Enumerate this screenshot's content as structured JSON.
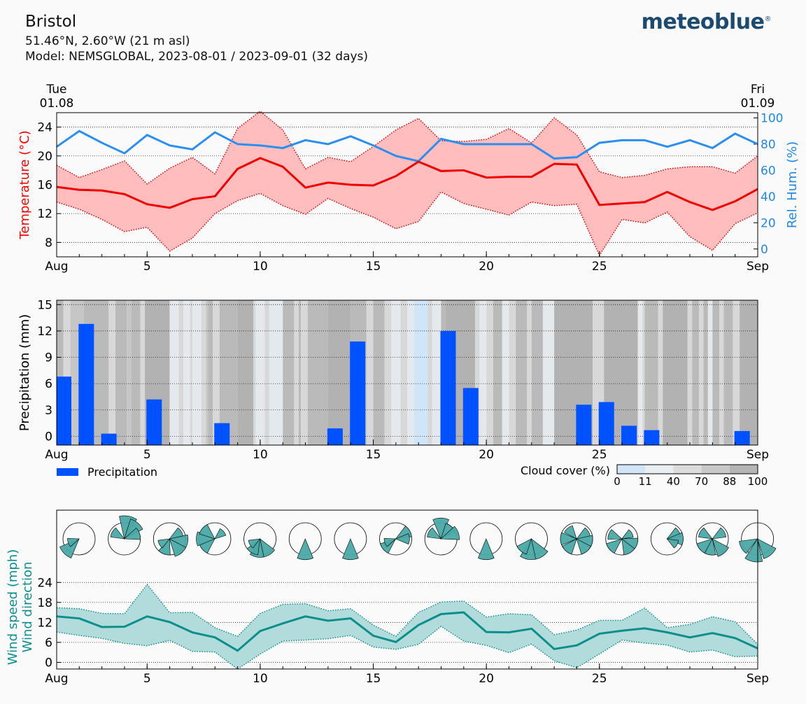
{
  "header": {
    "city": "Bristol",
    "coords": "51.46°N, 2.60°W (21 m asl)",
    "model": "Model: NEMSGLOBAL, 2023-08-01 / 2023-09-01 (32 days)",
    "logo": "meteoblue",
    "logo_mark": "®"
  },
  "dates": {
    "start_day": "Tue",
    "start_date": "01.08",
    "end_day": "Fri",
    "end_date": "01.09"
  },
  "xaxis": {
    "ticks": [
      {
        "day": 1,
        "label": "Aug"
      },
      {
        "day": 5,
        "label": "5"
      },
      {
        "day": 10,
        "label": "10"
      },
      {
        "day": 15,
        "label": "15"
      },
      {
        "day": 20,
        "label": "20"
      },
      {
        "day": 25,
        "label": "25"
      },
      {
        "day": 32,
        "label": "Sep"
      }
    ]
  },
  "chart_data": [
    {
      "type": "line",
      "ylabel": "Temperature (°C)",
      "y2label": "Rel. Hum. (%)",
      "ylim": [
        6,
        26
      ],
      "yticks": [
        8,
        12,
        16,
        20,
        24
      ],
      "y2lim": [
        -6,
        104
      ],
      "y2ticks": [
        0,
        20,
        40,
        60,
        80,
        100
      ],
      "x": [
        1,
        2,
        3,
        4,
        5,
        6,
        7,
        8,
        9,
        10,
        11,
        12,
        13,
        14,
        15,
        16,
        17,
        18,
        19,
        20,
        21,
        22,
        23,
        24,
        25,
        26,
        27,
        28,
        29,
        30,
        31,
        32
      ],
      "series": [
        {
          "key": "tmax",
          "values": [
            18.7,
            17.0,
            18.1,
            19.3,
            16.1,
            18.3,
            19.8,
            17.5,
            23.8,
            26.2,
            23.6,
            18.2,
            19.8,
            19.2,
            21.3,
            23.6,
            25.2,
            22.1,
            22.0,
            22.3,
            23.8,
            21.8,
            25.3,
            22.9,
            17.8,
            17.0,
            17.3,
            18.2,
            18.5,
            18.5,
            17.6,
            20.0
          ],
          "color": "#ff0000"
        },
        {
          "key": "tmean",
          "values": [
            15.7,
            15.3,
            15.2,
            14.7,
            13.3,
            12.8,
            14.0,
            14.4,
            18.2,
            19.7,
            18.5,
            15.6,
            16.3,
            16.0,
            15.9,
            17.2,
            19.2,
            17.9,
            18.0,
            17.0,
            17.1,
            17.1,
            18.9,
            18.8,
            13.2,
            13.4,
            13.6,
            15.0,
            13.6,
            12.5,
            13.7,
            15.4
          ],
          "color": "#ff0000"
        },
        {
          "key": "tmin",
          "values": [
            13.6,
            12.6,
            11.2,
            9.5,
            10.1,
            6.8,
            8.6,
            12.0,
            13.8,
            14.8,
            13.1,
            11.9,
            14.1,
            12.7,
            11.5,
            9.9,
            10.9,
            15.0,
            13.4,
            12.6,
            11.8,
            13.6,
            13.1,
            13.3,
            6.2,
            11.2,
            10.7,
            12.2,
            8.8,
            6.9,
            10.6,
            12.1
          ],
          "color": "#ff0000"
        },
        {
          "key": "rh",
          "values": [
            78,
            90,
            81,
            73,
            87,
            79,
            76,
            89,
            80,
            79,
            77,
            83,
            80,
            86,
            79,
            71,
            67,
            84,
            80,
            80,
            80,
            80,
            69,
            70,
            81,
            83,
            83,
            78,
            83,
            77,
            88,
            80
          ],
          "color": "#1e88e5"
        }
      ]
    },
    {
      "type": "bar",
      "ylabel": "Precipitation (mm)",
      "ylim": [
        -1,
        15.5
      ],
      "yticks": [
        0,
        3,
        6,
        9,
        12,
        15
      ],
      "legend": "Precipitation",
      "bar_color": "#0051ff",
      "x": [
        1,
        2,
        3,
        4,
        5,
        6,
        7,
        8,
        9,
        10,
        11,
        12,
        13,
        14,
        15,
        16,
        17,
        18,
        19,
        20,
        21,
        22,
        23,
        24,
        25,
        26,
        27,
        28,
        29,
        30,
        31,
        32
      ],
      "values": [
        6.8,
        12.8,
        0.3,
        0,
        4.2,
        0,
        0,
        1.5,
        0,
        0,
        0,
        0,
        0.9,
        10.8,
        0,
        0,
        0,
        12.0,
        5.5,
        0,
        0,
        0,
        0,
        3.6,
        3.9,
        1.2,
        0.7,
        0,
        0,
        0,
        0.6,
        0
      ],
      "cloud_legend": {
        "title": "Cloud cover (%)",
        "labels": [
          "0",
          "11",
          "40",
          "70",
          "88",
          "100"
        ],
        "colors": [
          "#d0e6f8",
          "#e8eef2",
          "#dcdcdc",
          "#c8c8c8",
          "#b4b4b4"
        ]
      },
      "cloud_cover": [
        [
          1,
          88
        ],
        [
          1.3,
          40
        ],
        [
          1.6,
          70
        ],
        [
          2.2,
          90
        ],
        [
          3.3,
          40
        ],
        [
          3.6,
          90
        ],
        [
          4.1,
          70
        ],
        [
          4.3,
          90
        ],
        [
          4.7,
          40
        ],
        [
          4.9,
          100
        ],
        [
          6.0,
          11
        ],
        [
          6.4,
          40
        ],
        [
          6.6,
          11
        ],
        [
          6.9,
          40
        ],
        [
          7.0,
          11
        ],
        [
          7.4,
          40
        ],
        [
          7.6,
          70
        ],
        [
          7.7,
          88
        ],
        [
          7.9,
          40
        ],
        [
          8.2,
          88
        ],
        [
          9.0,
          95
        ],
        [
          9.7,
          40
        ],
        [
          9.8,
          11
        ],
        [
          10.2,
          40
        ],
        [
          10.4,
          11
        ],
        [
          11.0,
          88
        ],
        [
          11.5,
          40
        ],
        [
          11.7,
          88
        ],
        [
          11.8,
          40
        ],
        [
          12.1,
          88
        ],
        [
          13.0,
          95
        ],
        [
          14.0,
          88
        ],
        [
          14.7,
          40
        ],
        [
          15.0,
          88
        ],
        [
          15.5,
          40
        ],
        [
          15.8,
          11
        ],
        [
          16.2,
          40
        ],
        [
          16.5,
          11
        ],
        [
          16.8,
          0
        ],
        [
          17.4,
          40
        ],
        [
          17.6,
          11
        ],
        [
          18.0,
          88
        ],
        [
          18.2,
          100
        ],
        [
          19.5,
          40
        ],
        [
          19.7,
          11
        ],
        [
          20.0,
          40
        ],
        [
          20.3,
          88
        ],
        [
          20.7,
          11
        ],
        [
          21.0,
          40
        ],
        [
          21.3,
          88
        ],
        [
          21.8,
          40
        ],
        [
          22.0,
          88
        ],
        [
          22.5,
          11
        ],
        [
          23.0,
          95
        ],
        [
          24.7,
          40
        ],
        [
          25.2,
          100
        ],
        [
          26.7,
          11
        ],
        [
          26.9,
          40
        ],
        [
          27.0,
          88
        ],
        [
          27.6,
          40
        ],
        [
          27.8,
          100
        ],
        [
          28.9,
          40
        ],
        [
          29.1,
          88
        ],
        [
          29.4,
          40
        ],
        [
          29.6,
          88
        ],
        [
          29.8,
          11
        ],
        [
          30.0,
          88
        ],
        [
          30.3,
          40
        ],
        [
          30.5,
          88
        ],
        [
          30.9,
          40
        ],
        [
          31.2,
          100
        ],
        [
          32.0,
          40
        ],
        [
          32.2,
          88
        ]
      ]
    },
    {
      "type": "area",
      "ylabel": "Wind speed (mph)",
      "ylabel2": "Wind direction",
      "ylim": [
        -2,
        27
      ],
      "yticks": [
        0,
        6,
        12,
        18,
        24
      ],
      "color": "#0b8f8c",
      "x": [
        1,
        2,
        3,
        4,
        5,
        6,
        7,
        8,
        9,
        10,
        11,
        12,
        13,
        14,
        15,
        16,
        17,
        18,
        19,
        20,
        21,
        22,
        23,
        24,
        25,
        26,
        27,
        28,
        29,
        30,
        31,
        32
      ],
      "wind_max": [
        16.4,
        16.1,
        14.7,
        14.6,
        23.4,
        14.9,
        15.0,
        10.4,
        7.8,
        14.7,
        17.4,
        17.6,
        15.5,
        16.1,
        11.2,
        7.8,
        15.0,
        18.1,
        18.4,
        13.6,
        14.6,
        14.3,
        8.3,
        9.7,
        12.6,
        12.6,
        16.3,
        10.4,
        11.4,
        13.7,
        12.2,
        5.4
      ],
      "wind_mean": [
        13.8,
        13.2,
        10.6,
        10.7,
        13.8,
        12.1,
        9.0,
        7.5,
        3.5,
        9.4,
        11.7,
        13.8,
        12.5,
        13.2,
        8.0,
        6.1,
        11.2,
        14.5,
        15.0,
        9.1,
        9.0,
        10.1,
        4.0,
        5.1,
        8.6,
        9.5,
        10.2,
        9.0,
        7.5,
        8.8,
        7.3,
        4.2
      ],
      "wind_min": [
        9.1,
        8.1,
        7.2,
        5.7,
        5.0,
        6.6,
        3.3,
        3.1,
        -2.0,
        2.5,
        6.4,
        6.7,
        7.1,
        8.1,
        4.6,
        3.9,
        5.4,
        10.8,
        6.4,
        5.1,
        2.9,
        5.5,
        0.5,
        -1.6,
        2.5,
        6.7,
        5.8,
        5.2,
        3.1,
        3.7,
        1.7,
        1.9
      ],
      "wind_roses": [
        {
          "day": 1,
          "sectors": [
            [
              225,
              0.9
            ],
            [
              250,
              0.5
            ]
          ]
        },
        {
          "day": 3,
          "sectors": [
            [
              10,
              1.0
            ],
            [
              40,
              0.9
            ],
            [
              70,
              0.7
            ],
            [
              300,
              0.6
            ]
          ]
        },
        {
          "day": 5,
          "sectors": [
            [
              60,
              0.6
            ],
            [
              100,
              0.8
            ],
            [
              140,
              0.8
            ],
            [
              200,
              0.7
            ],
            [
              240,
              0.5
            ]
          ]
        },
        {
          "day": 7,
          "sectors": [
            [
              230,
              0.7
            ],
            [
              270,
              0.8
            ],
            [
              310,
              0.7
            ],
            [
              50,
              0.5
            ]
          ]
        },
        {
          "day": 9,
          "sectors": [
            [
              150,
              0.8
            ],
            [
              190,
              0.8
            ],
            [
              210,
              0.7
            ],
            [
              240,
              0.5
            ]
          ]
        },
        {
          "day": 11,
          "sectors": [
            [
              180,
              0.9
            ]
          ]
        },
        {
          "day": 13,
          "sectors": [
            [
              180,
              0.9
            ]
          ]
        },
        {
          "day": 15,
          "sectors": [
            [
              60,
              0.7
            ],
            [
              90,
              0.6
            ],
            [
              230,
              0.7
            ],
            [
              250,
              0.5
            ]
          ]
        },
        {
          "day": 17,
          "sectors": [
            [
              0,
              0.9
            ],
            [
              40,
              0.7
            ],
            [
              70,
              0.8
            ],
            [
              300,
              0.6
            ]
          ]
        },
        {
          "day": 19,
          "sectors": [
            [
              180,
              0.9
            ]
          ]
        },
        {
          "day": 21,
          "sectors": [
            [
              150,
              0.9
            ],
            [
              190,
              0.9
            ],
            [
              220,
              0.7
            ]
          ]
        },
        {
          "day": 23,
          "sectors": [
            [
              60,
              0.6
            ],
            [
              100,
              0.7
            ],
            [
              140,
              0.7
            ],
            [
              220,
              0.7
            ],
            [
              270,
              0.7
            ],
            [
              320,
              0.6
            ]
          ]
        },
        {
          "day": 25,
          "sectors": [
            [
              60,
              0.5
            ],
            [
              110,
              0.7
            ],
            [
              150,
              0.7
            ],
            [
              230,
              0.7
            ],
            [
              290,
              0.6
            ]
          ]
        },
        {
          "day": 27,
          "sectors": [
            [
              60,
              0.6
            ],
            [
              90,
              0.7
            ],
            [
              120,
              0.5
            ]
          ]
        },
        {
          "day": 29,
          "sectors": [
            [
              60,
              0.6
            ],
            [
              140,
              0.8
            ],
            [
              190,
              0.7
            ],
            [
              230,
              0.7
            ],
            [
              300,
              0.6
            ]
          ]
        },
        {
          "day": 31,
          "sectors": [
            [
              140,
              0.9
            ],
            [
              190,
              1.0
            ],
            [
              240,
              0.8
            ]
          ]
        }
      ]
    }
  ]
}
